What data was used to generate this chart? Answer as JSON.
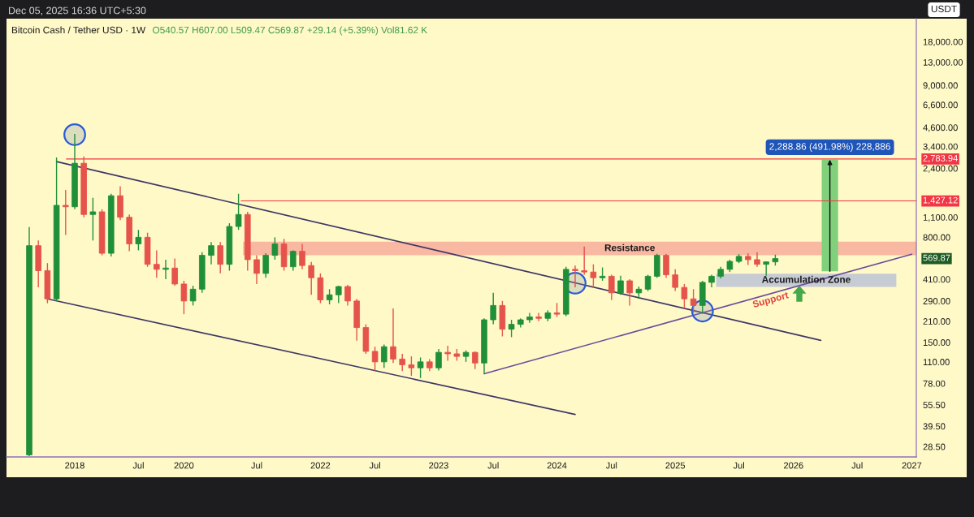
{
  "chart_data": {
    "type": "candlestick",
    "title": "Bitcoin Cash / Tether USD · 1W",
    "subtitle": "O540.57 H607.00 L509.47 C569.87 +29.14 (+5.39%) Vol81.62 K",
    "ylabel": "USDT",
    "annotations": [
      "Dec 05, 2025 16:36 UTC+5:30",
      "569.87",
      "Support"
    ],
    "categories": [
      null,
      null,
      null,
      null,
      null,
      null,
      null,
      "2018",
      null,
      null,
      null,
      null,
      null,
      null,
      "Jul",
      null,
      null,
      null,
      null,
      "2020",
      null,
      null,
      null,
      null,
      null,
      null,
      null,
      "Jul",
      null,
      null,
      null,
      null,
      null,
      null,
      "2022",
      null,
      null,
      null,
      null,
      null,
      "Jul",
      null,
      null,
      null,
      null,
      null,
      null,
      "2023",
      null,
      null,
      null,
      null,
      null,
      "Jul",
      null,
      null,
      null,
      null,
      null,
      null,
      "2024",
      null,
      null,
      null,
      null,
      null,
      "Jul",
      null,
      null,
      null,
      null,
      null,
      null,
      "2025",
      null,
      null,
      null,
      null,
      null,
      null,
      "Jul",
      null,
      null,
      null,
      null,
      null,
      "2026",
      null,
      null,
      null,
      null,
      null,
      null,
      "Jul",
      null,
      null,
      null,
      null,
      null,
      "2027"
    ],
    "ohlc": [
      null,
      null,
      [
        25,
        940,
        24.5,
        700
      ],
      [
        700,
        760,
        360,
        470
      ],
      [
        470,
        530,
        280,
        300
      ],
      [
        300,
        2850,
        290,
        1330
      ],
      [
        1330,
        1700,
        830,
        1300
      ],
      [
        1300,
        4150,
        1250,
        2600
      ],
      [
        2600,
        2900,
        1100,
        1150
      ],
      [
        1150,
        1500,
        760,
        1200
      ],
      [
        1200,
        1250,
        600,
        620
      ],
      [
        620,
        1600,
        590,
        1550
      ],
      [
        1550,
        1800,
        1050,
        1100
      ],
      [
        1100,
        1150,
        640,
        720
      ],
      [
        720,
        900,
        650,
        800
      ],
      [
        800,
        860,
        500,
        520
      ],
      [
        520,
        650,
        420,
        480
      ],
      [
        480,
        560,
        410,
        490
      ],
      [
        490,
        570,
        370,
        380
      ],
      [
        380,
        400,
        235,
        290
      ],
      [
        290,
        370,
        270,
        350
      ],
      [
        350,
        630,
        330,
        600
      ],
      [
        600,
        740,
        520,
        700
      ],
      [
        700,
        740,
        450,
        520
      ],
      [
        520,
        1000,
        470,
        950
      ],
      [
        950,
        1600,
        900,
        1150
      ],
      [
        1150,
        1200,
        470,
        560
      ],
      [
        560,
        600,
        380,
        450
      ],
      [
        450,
        620,
        420,
        600
      ],
      [
        600,
        800,
        560,
        720
      ],
      [
        720,
        780,
        470,
        500
      ],
      [
        500,
        650,
        470,
        640
      ],
      [
        640,
        720,
        480,
        510
      ],
      [
        510,
        540,
        320,
        420
      ],
      [
        420,
        450,
        280,
        295
      ],
      [
        295,
        350,
        275,
        320
      ],
      [
        320,
        370,
        280,
        365
      ],
      [
        365,
        375,
        270,
        290
      ],
      [
        290,
        300,
        154,
        190
      ],
      [
        190,
        200,
        125,
        130
      ],
      [
        130,
        140,
        95,
        110
      ],
      [
        110,
        145,
        100,
        140
      ],
      [
        140,
        258,
        108,
        115
      ],
      [
        115,
        125,
        95,
        105
      ],
      [
        105,
        120,
        88,
        100
      ],
      [
        100,
        118,
        85,
        110
      ],
      [
        110,
        115,
        95,
        100
      ],
      [
        100,
        135,
        96,
        128
      ],
      [
        128,
        142,
        112,
        125
      ],
      [
        125,
        135,
        112,
        120
      ],
      [
        120,
        132,
        110,
        128
      ],
      [
        128,
        130,
        98,
        108
      ],
      [
        108,
        220,
        92,
        215
      ],
      [
        215,
        330,
        200,
        270
      ],
      [
        270,
        290,
        165,
        185
      ],
      [
        185,
        215,
        163,
        200
      ],
      [
        200,
        220,
        190,
        215
      ],
      [
        215,
        240,
        205,
        225
      ],
      [
        225,
        240,
        210,
        220
      ],
      [
        220,
        250,
        210,
        240
      ],
      [
        240,
        281,
        225,
        235
      ],
      [
        235,
        500,
        228,
        480
      ],
      [
        480,
        510,
        360,
        470
      ],
      [
        470,
        690,
        440,
        460
      ],
      [
        460,
        520,
        360,
        420
      ],
      [
        420,
        495,
        400,
        430
      ],
      [
        430,
        440,
        294,
        330
      ],
      [
        330,
        433,
        320,
        400
      ],
      [
        400,
        410,
        270,
        330
      ],
      [
        330,
        365,
        300,
        350
      ],
      [
        350,
        440,
        340,
        430
      ],
      [
        430,
        615,
        420,
        600
      ],
      [
        600,
        615,
        420,
        440
      ],
      [
        440,
        480,
        340,
        360
      ],
      [
        360,
        380,
        258,
        300
      ],
      [
        300,
        350,
        240,
        270
      ],
      [
        270,
        400,
        237,
        390
      ],
      [
        390,
        440,
        360,
        430
      ],
      [
        430,
        500,
        415,
        480
      ],
      [
        480,
        560,
        460,
        545
      ],
      [
        545,
        611,
        530,
        590
      ],
      [
        590,
        620,
        515,
        560
      ],
      [
        560,
        630,
        500,
        520
      ],
      [
        520,
        545,
        433,
        540.57
      ],
      [
        540.57,
        607.0,
        509.47,
        569.87
      ],
      null,
      null,
      null,
      null,
      null,
      null,
      null,
      null,
      null,
      null,
      null,
      null,
      null,
      null,
      null
    ],
    "colors": [
      null,
      null,
      "#1f8f3a",
      "#e5534b",
      "#e5534b",
      "#1f8f3a",
      "#e5534b",
      "#1f8f3a",
      "#e5534b",
      "#1f8f3a",
      "#e5534b",
      "#1f8f3a",
      "#e5534b",
      "#e5534b",
      "#1f8f3a",
      "#e5534b",
      "#e5534b",
      "#1f8f3a",
      "#e5534b",
      "#e5534b",
      "#1f8f3a",
      "#1f8f3a",
      "#1f8f3a",
      "#e5534b",
      "#1f8f3a",
      "#1f8f3a",
      "#e5534b",
      "#e5534b",
      "#1f8f3a",
      "#1f8f3a",
      "#e5534b",
      "#1f8f3a",
      "#e5534b",
      "#e5534b",
      "#e5534b",
      "#1f8f3a",
      "#1f8f3a",
      "#e5534b",
      "#e5534b",
      "#e5534b",
      "#e5534b",
      "#1f8f3a",
      "#e5534b",
      "#e5534b",
      "#e5534b",
      "#1f8f3a",
      "#e5534b",
      "#1f8f3a",
      "#e5534b",
      "#e5534b",
      "#1f8f3a",
      "#e5534b",
      "#1f8f3a",
      "#1f8f3a",
      "#e5534b",
      "#1f8f3a",
      "#1f8f3a",
      "#1f8f3a",
      "#e5534b",
      "#1f8f3a",
      "#e5534b",
      "#1f8f3a",
      "#e5534b",
      "#e5534b",
      "#e5534b",
      "#1f8f3a",
      "#e5534b",
      "#1f8f3a",
      "#e5534b",
      "#1f8f3a",
      "#1f8f3a",
      "#1f8f3a",
      "#e5534b",
      "#e5534b",
      "#e5534b",
      "#e5534b",
      "#1f8f3a",
      "#1f8f3a",
      "#1f8f3a",
      "#1f8f3a",
      "#1f8f3a",
      "#e5534b",
      "#e5534b",
      "#1f8f3a",
      "#1f8f3a",
      null,
      null,
      null,
      null,
      null,
      null,
      null,
      null,
      null,
      null,
      null,
      null,
      null,
      null,
      null
    ],
    "log": true,
    "ylim": [
      24.2,
      26000
    ],
    "yticks": [
      {
        "value": 18000,
        "label": "18,000.00"
      },
      {
        "value": 13000,
        "label": "13,000.00"
      },
      {
        "value": 9000,
        "label": "9,000.00"
      },
      {
        "value": 6600,
        "label": "6,600.00"
      },
      {
        "value": 4600,
        "label": "4,600.00"
      },
      {
        "value": 3400,
        "label": "3,400.00"
      },
      {
        "value": 2400,
        "label": "2,400.00"
      },
      {
        "value": 1100,
        "label": "1,100.00"
      },
      {
        "value": 800,
        "label": "800.00"
      },
      {
        "value": 410,
        "label": "410.00"
      },
      {
        "value": 290,
        "label": "290.00"
      },
      {
        "value": 210,
        "label": "210.00"
      },
      {
        "value": 150,
        "label": "150.00"
      },
      {
        "value": 110,
        "label": "110.00"
      },
      {
        "value": 78,
        "label": "78.00"
      },
      {
        "value": 55.5,
        "label": "55.50"
      },
      {
        "value": 39.5,
        "label": "39.50"
      },
      {
        "value": 28.5,
        "label": "28.50"
      }
    ],
    "ref_lines": [
      {
        "axis": "y",
        "value": 2783.94,
        "label": "2,783.94",
        "color": "#f23645"
      },
      {
        "axis": "y",
        "value": 1427.12,
        "label": "1,427.12",
        "color": "#f23645"
      }
    ],
    "bands": [
      {
        "axis": "y",
        "from": 600,
        "to": 745,
        "label": "Resistance",
        "color": "#f9b8a2"
      },
      {
        "axis": "y",
        "from": 363,
        "to": 448,
        "label": "Accumulation Zone",
        "color": "#c6cbd4"
      }
    ],
    "series": [
      {
        "type": "bar",
        "color": "#80d07c",
        "values": [
          null,
          null,
          null,
          null,
          null,
          null,
          null,
          null,
          null,
          null,
          null,
          null,
          null,
          null,
          null,
          null,
          null,
          null,
          null,
          null,
          null,
          null,
          null,
          null,
          null,
          null,
          null,
          null,
          null,
          null,
          null,
          null,
          null,
          null,
          null,
          null,
          null,
          null,
          null,
          null,
          null,
          null,
          null,
          null,
          null,
          null,
          null,
          null,
          null,
          null,
          null,
          null,
          null,
          null,
          null,
          null,
          null,
          null,
          null,
          null,
          null,
          null,
          null,
          null,
          null,
          null,
          null,
          null,
          null,
          null,
          null,
          null,
          null,
          null,
          null,
          null,
          null,
          null,
          null,
          null,
          null,
          null,
          null,
          null,
          null,
          null,
          null,
          null,
          null,
          null,
          2288.86,
          null,
          null,
          null,
          null,
          null,
          null,
          null,
          null,
          null
        ],
        "base": [
          null,
          null,
          null,
          null,
          null,
          null,
          null,
          null,
          null,
          null,
          null,
          null,
          null,
          null,
          null,
          null,
          null,
          null,
          null,
          null,
          null,
          null,
          null,
          null,
          null,
          null,
          null,
          null,
          null,
          null,
          null,
          null,
          null,
          null,
          null,
          null,
          null,
          null,
          null,
          null,
          null,
          null,
          null,
          null,
          null,
          null,
          null,
          null,
          null,
          null,
          null,
          null,
          null,
          null,
          null,
          null,
          null,
          null,
          null,
          null,
          null,
          null,
          null,
          null,
          null,
          null,
          null,
          null,
          null,
          null,
          null,
          null,
          null,
          null,
          null,
          null,
          null,
          null,
          null,
          null,
          null,
          null,
          null,
          null,
          null,
          null,
          null,
          null,
          null,
          null,
          465.23,
          null,
          null,
          null,
          null,
          null,
          null,
          null,
          null,
          null
        ],
        "value_labels": [
          null,
          null,
          null,
          null,
          null,
          null,
          null,
          null,
          null,
          null,
          null,
          null,
          null,
          null,
          null,
          null,
          null,
          null,
          null,
          null,
          null,
          null,
          null,
          null,
          null,
          null,
          null,
          null,
          null,
          null,
          null,
          null,
          null,
          null,
          null,
          null,
          null,
          null,
          null,
          null,
          null,
          null,
          null,
          null,
          null,
          null,
          null,
          null,
          null,
          null,
          null,
          null,
          null,
          null,
          null,
          null,
          null,
          null,
          null,
          null,
          null,
          null,
          null,
          null,
          null,
          null,
          null,
          null,
          null,
          null,
          null,
          null,
          null,
          null,
          null,
          null,
          null,
          null,
          null,
          null,
          null,
          null,
          null,
          null,
          null,
          null,
          null,
          null,
          null,
          null,
          "2,288.86 (491.98%) 228,886",
          null,
          null,
          null,
          null,
          null,
          null,
          null,
          null,
          null
        ]
      },
      {
        "type": "line",
        "color": "#3d3766",
        "values": [
          null,
          null,
          null,
          null,
          null,
          2670,
          null,
          null,
          null,
          null,
          null,
          null,
          null,
          null,
          null,
          null,
          null,
          null,
          null,
          null,
          null,
          null,
          null,
          null,
          null,
          null,
          null,
          null,
          null,
          null,
          null,
          null,
          null,
          null,
          null,
          null,
          null,
          null,
          null,
          null,
          null,
          null,
          null,
          null,
          null,
          null,
          null,
          null,
          null,
          null,
          null,
          null,
          null,
          null,
          null,
          null,
          null,
          null,
          null,
          null,
          null,
          null,
          null,
          null,
          null,
          null,
          null,
          null,
          null,
          null,
          null,
          null,
          null,
          null,
          null,
          null,
          null,
          null,
          null,
          null,
          null,
          null,
          null,
          null,
          null,
          null,
          null,
          null,
          null,
          155,
          null,
          null,
          null,
          null,
          null,
          null,
          null,
          null,
          null,
          null
        ]
      },
      {
        "type": "line",
        "color": "#3d3766",
        "values": [
          null,
          null,
          null,
          null,
          300,
          null,
          null,
          null,
          null,
          null,
          null,
          null,
          null,
          null,
          null,
          null,
          null,
          null,
          null,
          null,
          null,
          null,
          null,
          null,
          null,
          null,
          null,
          null,
          null,
          null,
          null,
          null,
          null,
          null,
          null,
          null,
          null,
          null,
          null,
          null,
          null,
          null,
          null,
          null,
          null,
          null,
          null,
          null,
          null,
          null,
          null,
          null,
          null,
          null,
          null,
          null,
          null,
          null,
          null,
          null,
          null,
          null,
          47.6,
          null,
          null,
          null,
          null,
          null,
          null,
          null,
          null,
          null,
          null,
          null,
          null,
          null,
          null,
          null,
          null,
          null,
          null,
          null,
          null,
          null,
          null,
          null,
          null,
          null,
          null,
          null,
          null,
          null,
          null,
          null,
          null,
          null,
          null,
          null,
          null,
          null
        ]
      },
      {
        "type": "line",
        "color": "#6b4c9a",
        "values": [
          null,
          null,
          null,
          null,
          null,
          null,
          null,
          null,
          null,
          null,
          null,
          null,
          null,
          null,
          null,
          null,
          null,
          null,
          null,
          null,
          null,
          null,
          null,
          null,
          null,
          null,
          null,
          null,
          null,
          null,
          null,
          null,
          null,
          null,
          null,
          null,
          null,
          null,
          null,
          null,
          null,
          null,
          null,
          null,
          null,
          null,
          null,
          null,
          null,
          null,
          null,
          null,
          91,
          null,
          null,
          null,
          null,
          null,
          null,
          null,
          null,
          null,
          null,
          null,
          null,
          null,
          null,
          null,
          null,
          null,
          null,
          null,
          null,
          null,
          null,
          null,
          null,
          null,
          null,
          null,
          null,
          null,
          null,
          null,
          null,
          null,
          null,
          null,
          null,
          null,
          null,
          null,
          null,
          null,
          null,
          null,
          null,
          null,
          null,
          611
        ]
      },
      {
        "type": "scatter",
        "marker": "circle",
        "color": "#2a5bd7",
        "values": [
          null,
          null,
          null,
          null,
          null,
          null,
          null,
          4100,
          null,
          null,
          null,
          null,
          null,
          null,
          null,
          null,
          null,
          null,
          null,
          null,
          null,
          null,
          null,
          null,
          null,
          null,
          null,
          null,
          null,
          null,
          null,
          null,
          null,
          null,
          null,
          null,
          null,
          null,
          null,
          null,
          null,
          null,
          null,
          null,
          null,
          null,
          null,
          null,
          null,
          null,
          null,
          null,
          null,
          null,
          null,
          null,
          null,
          null,
          null,
          null,
          null,
          null,
          385,
          null,
          null,
          null,
          null,
          null,
          null,
          null,
          null,
          null,
          null,
          null,
          null,
          null,
          247,
          null,
          null,
          null,
          null,
          null,
          null,
          null,
          null,
          null,
          null,
          null,
          null,
          null,
          null,
          null,
          null,
          null,
          null,
          null,
          null,
          null,
          null,
          null
        ]
      }
    ]
  }
}
